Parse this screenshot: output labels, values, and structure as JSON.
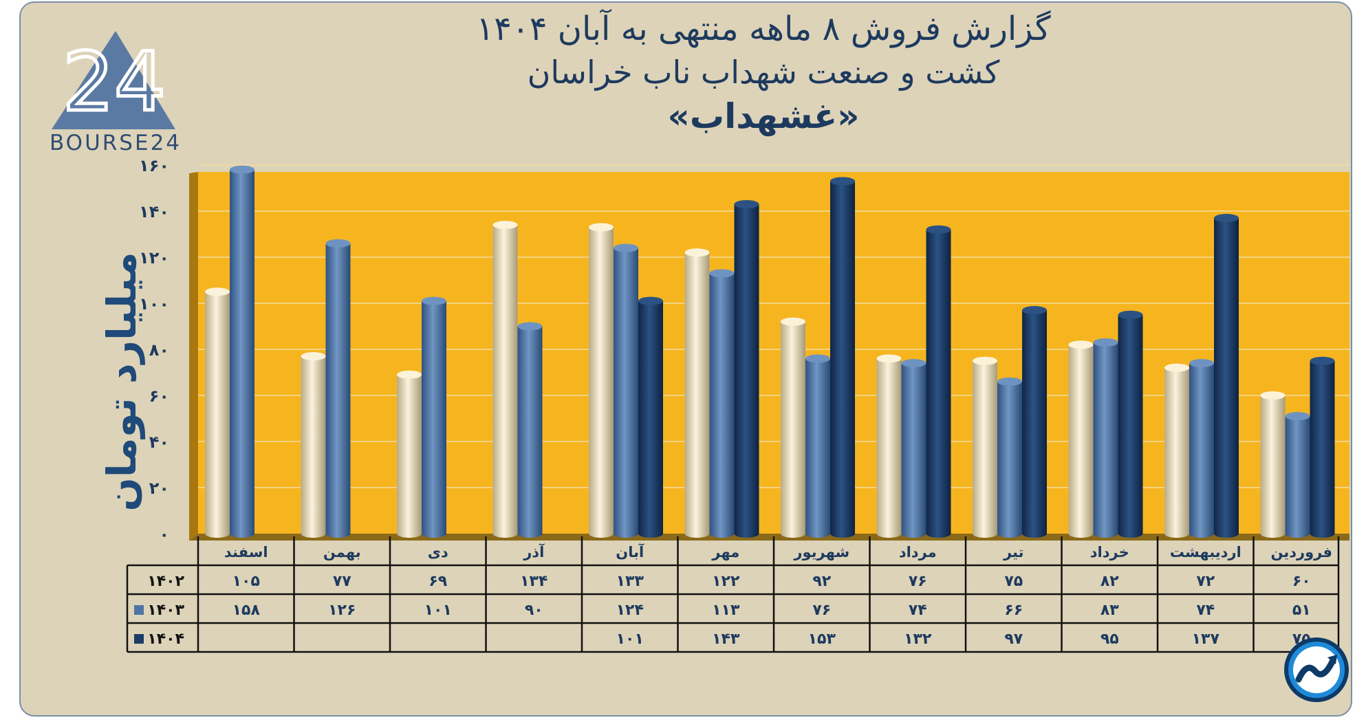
{
  "chart_data": {
    "type": "bar",
    "title": "گزارش  فروش ۸ ماهه منتهی به آبان ۱۴۰۴",
    "subtitle": "کشت و صنعت شهداب ناب خراسان",
    "ticker": "«غشهداب»",
    "ylabel": "میلیارد تومان",
    "ylim": [
      0,
      160
    ],
    "yticks": [
      "۰",
      "۲۰",
      "۴۰",
      "۶۰",
      "۸۰",
      "۱۰۰",
      "۱۲۰",
      "۱۴۰",
      "۱۶۰"
    ],
    "categories": [
      "فروردین",
      "اردیبهشت",
      "خرداد",
      "تیر",
      "مرداد",
      "شهریور",
      "مهر",
      "آبان",
      "آذر",
      "دی",
      "بهمن",
      "اسفند"
    ],
    "series": [
      {
        "name": "۱۴۰۲",
        "color": "#e8dcc0",
        "values": [
          60,
          72,
          82,
          75,
          76,
          92,
          122,
          133,
          134,
          69,
          77,
          105
        ],
        "labels": [
          "۶۰",
          "۷۲",
          "۸۲",
          "۷۵",
          "۷۶",
          "۹۲",
          "۱۲۲",
          "۱۳۳",
          "۱۳۴",
          "۶۹",
          "۷۷",
          "۱۰۵"
        ]
      },
      {
        "name": "۱۴۰۳",
        "color": "#4e75a3",
        "values": [
          51,
          74,
          83,
          66,
          74,
          76,
          113,
          124,
          90,
          101,
          126,
          158
        ],
        "labels": [
          "۵۱",
          "۷۴",
          "۸۳",
          "۶۶",
          "۷۴",
          "۷۶",
          "۱۱۳",
          "۱۲۴",
          "۹۰",
          "۱۰۱",
          "۱۲۶",
          "۱۵۸"
        ]
      },
      {
        "name": "۱۴۰۴",
        "color": "#1b3d66",
        "values": [
          75,
          137,
          95,
          97,
          132,
          153,
          143,
          101,
          null,
          null,
          null,
          null
        ],
        "labels": [
          "۷۵",
          "۱۳۷",
          "۹۵",
          "۹۷",
          "۱۳۲",
          "۱۵۳",
          "۱۴۳",
          "۱۰۱",
          "",
          "",
          "",
          ""
        ]
      }
    ]
  },
  "logo": {
    "text": "BOURSE24",
    "number": "24"
  },
  "colors": {
    "plot_bg": "#f6b51f",
    "card_bg": "#ddd3b9",
    "title": "#1d3a5e",
    "axis_label": "#1f4a79"
  }
}
